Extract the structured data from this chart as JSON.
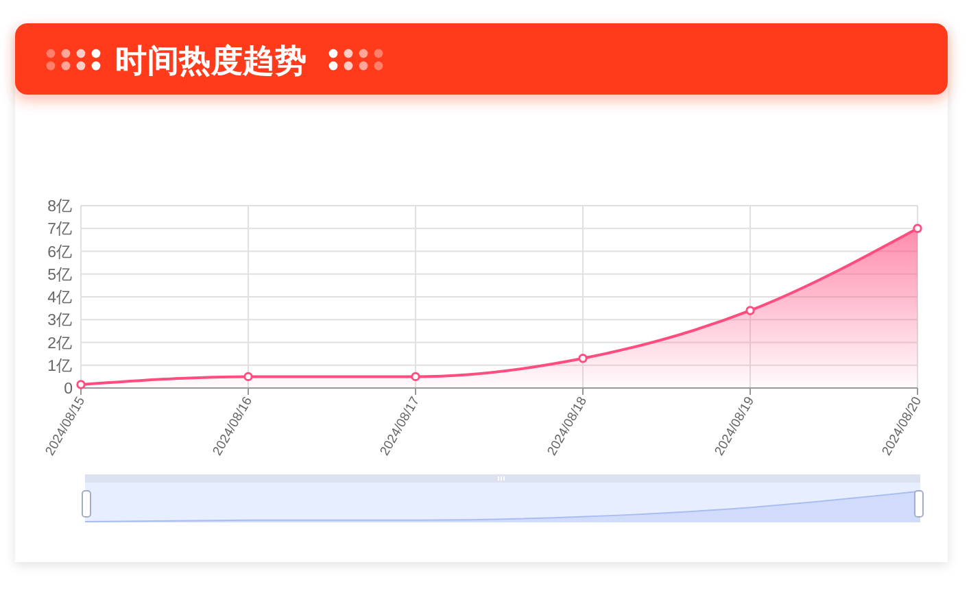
{
  "chart_data": {
    "type": "area",
    "title": "时间热度趋势",
    "categories": [
      "2024/08/15",
      "2024/08/16",
      "2024/08/17",
      "2024/08/18",
      "2024/08/19",
      "2024/08/20"
    ],
    "values": [
      0.15,
      0.5,
      0.5,
      1.3,
      3.4,
      7.0
    ],
    "color": "#ff4d80",
    "ylim": [
      0,
      8
    ],
    "yticks": [
      0,
      {
        "value": 1,
        "label": "1亿"
      },
      {
        "value": 2,
        "label": "2亿"
      },
      {
        "value": 3,
        "label": "3亿"
      },
      {
        "value": 4,
        "label": "4亿"
      },
      {
        "value": 5,
        "label": "5亿"
      },
      {
        "value": 6,
        "label": "6亿"
      },
      {
        "value": 7,
        "label": "7亿"
      },
      {
        "value": 8,
        "label": "8亿"
      }
    ],
    "grid": true,
    "marker": "circle"
  }
}
